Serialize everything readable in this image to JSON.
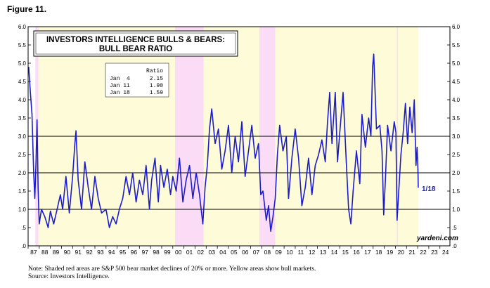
{
  "figure_label": "Figure 11.",
  "note": "Note: Shaded red areas are S&P 500 bear market declines of 20% or more. Yellow areas show bull markets.",
  "source": "Source: Investors Intelligence.",
  "colors": {
    "line": "#1c1ccc",
    "bull": "#fefcd8",
    "bear": "#fbdcf6",
    "gridline": "#000000"
  },
  "chart_data": {
    "type": "line",
    "title": "INVESTORS INTELLIGENCE BULLS & BEARS:",
    "subtitle": "BULL BEAR RATIO",
    "xlabel": "",
    "ylabel": "",
    "xlim": [
      1987.0,
      2024.9
    ],
    "ylim": [
      0,
      6
    ],
    "y_ticks": [
      {
        "v": 0,
        "label": ".0"
      },
      {
        "v": 0.5,
        "label": ".5"
      },
      {
        "v": 1.0,
        "label": "1.0"
      },
      {
        "v": 1.5,
        "label": "1.5"
      },
      {
        "v": 2.0,
        "label": "2.0"
      },
      {
        "v": 2.5,
        "label": "2.5"
      },
      {
        "v": 3.0,
        "label": "3.0"
      },
      {
        "v": 3.5,
        "label": "3.5"
      },
      {
        "v": 4.0,
        "label": "4.0"
      },
      {
        "v": 4.5,
        "label": "4.5"
      },
      {
        "v": 5.0,
        "label": "5.0"
      },
      {
        "v": 5.5,
        "label": "5.5"
      },
      {
        "v": 6.0,
        "label": "6.0"
      }
    ],
    "horizontal_lines": [
      1.0,
      2.0,
      3.0
    ],
    "x_tick_labels": [
      "87",
      "88",
      "89",
      "90",
      "91",
      "92",
      "93",
      "94",
      "95",
      "96",
      "97",
      "98",
      "99",
      "00",
      "01",
      "02",
      "03",
      "04",
      "05",
      "06",
      "07",
      "08",
      "09",
      "10",
      "11",
      "12",
      "13",
      "14",
      "15",
      "16",
      "17",
      "18",
      "19",
      "20",
      "21",
      "22",
      "23",
      "24"
    ],
    "bear_periods": [
      [
        1987.65,
        1987.92
      ],
      [
        2000.2,
        2002.78
      ],
      [
        2007.78,
        2009.2
      ],
      [
        2020.13,
        2020.23
      ]
    ],
    "bull_periods": [
      [
        1987.92,
        2000.2
      ],
      [
        2002.78,
        2007.78
      ],
      [
        2009.2,
        2020.13
      ],
      [
        2020.23,
        2022.05
      ]
    ],
    "table": {
      "header": "Ratio",
      "rows": [
        {
          "date": "Jan  4",
          "value": "2.15"
        },
        {
          "date": "Jan 11",
          "value": "1.90"
        },
        {
          "date": "Jan 18",
          "value": "1.59"
        }
      ]
    },
    "end_label": "1/18",
    "watermark": "yardeni.com",
    "series": [
      {
        "name": "Bull Bear Ratio",
        "points": [
          [
            1987.05,
            4.9
          ],
          [
            1987.2,
            4.2
          ],
          [
            1987.35,
            3.6
          ],
          [
            1987.5,
            2.0
          ],
          [
            1987.6,
            1.3
          ],
          [
            1987.7,
            2.2
          ],
          [
            1987.8,
            3.45
          ],
          [
            1987.9,
            1.6
          ],
          [
            1988.0,
            0.6
          ],
          [
            1988.2,
            1.0
          ],
          [
            1988.5,
            0.8
          ],
          [
            1988.8,
            0.5
          ],
          [
            1989.0,
            0.95
          ],
          [
            1989.3,
            0.6
          ],
          [
            1989.6,
            1.0
          ],
          [
            1989.9,
            1.4
          ],
          [
            1990.1,
            1.0
          ],
          [
            1990.4,
            1.9
          ],
          [
            1990.7,
            0.9
          ],
          [
            1991.0,
            1.9
          ],
          [
            1991.2,
            2.8
          ],
          [
            1991.3,
            3.15
          ],
          [
            1991.5,
            1.8
          ],
          [
            1991.8,
            1.0
          ],
          [
            1992.1,
            2.3
          ],
          [
            1992.4,
            1.6
          ],
          [
            1992.7,
            1.0
          ],
          [
            1993.0,
            1.9
          ],
          [
            1993.3,
            1.3
          ],
          [
            1993.6,
            0.9
          ],
          [
            1994.0,
            1.0
          ],
          [
            1994.3,
            0.5
          ],
          [
            1994.6,
            0.8
          ],
          [
            1994.9,
            0.6
          ],
          [
            1995.2,
            1.0
          ],
          [
            1995.5,
            1.3
          ],
          [
            1995.8,
            1.9
          ],
          [
            1996.1,
            1.4
          ],
          [
            1996.4,
            2.0
          ],
          [
            1996.7,
            1.2
          ],
          [
            1997.0,
            1.8
          ],
          [
            1997.3,
            1.4
          ],
          [
            1997.6,
            2.2
          ],
          [
            1997.9,
            1.0
          ],
          [
            1998.1,
            1.8
          ],
          [
            1998.4,
            2.4
          ],
          [
            1998.7,
            1.2
          ],
          [
            1998.9,
            2.2
          ],
          [
            1999.2,
            1.6
          ],
          [
            1999.5,
            2.1
          ],
          [
            1999.8,
            1.4
          ],
          [
            2000.0,
            1.9
          ],
          [
            2000.3,
            1.5
          ],
          [
            2000.6,
            2.4
          ],
          [
            2000.9,
            1.2
          ],
          [
            2001.2,
            1.8
          ],
          [
            2001.5,
            2.2
          ],
          [
            2001.8,
            1.3
          ],
          [
            2002.1,
            2.0
          ],
          [
            2002.4,
            1.4
          ],
          [
            2002.7,
            0.6
          ],
          [
            2002.9,
            1.6
          ],
          [
            2003.1,
            2.2
          ],
          [
            2003.3,
            3.2
          ],
          [
            2003.5,
            3.75
          ],
          [
            2003.8,
            2.8
          ],
          [
            2004.1,
            3.2
          ],
          [
            2004.4,
            2.1
          ],
          [
            2004.7,
            2.6
          ],
          [
            2005.0,
            3.3
          ],
          [
            2005.3,
            2.0
          ],
          [
            2005.6,
            3.0
          ],
          [
            2005.9,
            2.3
          ],
          [
            2006.2,
            3.4
          ],
          [
            2006.5,
            1.9
          ],
          [
            2006.8,
            2.6
          ],
          [
            2007.1,
            3.3
          ],
          [
            2007.4,
            2.4
          ],
          [
            2007.7,
            2.8
          ],
          [
            2007.9,
            1.4
          ],
          [
            2008.1,
            1.5
          ],
          [
            2008.4,
            0.7
          ],
          [
            2008.6,
            1.1
          ],
          [
            2008.8,
            0.4
          ],
          [
            2009.0,
            0.8
          ],
          [
            2009.2,
            1.3
          ],
          [
            2009.4,
            2.5
          ],
          [
            2009.6,
            3.3
          ],
          [
            2009.9,
            2.6
          ],
          [
            2010.2,
            3.0
          ],
          [
            2010.4,
            1.3
          ],
          [
            2010.7,
            2.4
          ],
          [
            2011.0,
            3.2
          ],
          [
            2011.3,
            2.4
          ],
          [
            2011.6,
            1.1
          ],
          [
            2011.9,
            1.6
          ],
          [
            2012.2,
            2.4
          ],
          [
            2012.5,
            1.4
          ],
          [
            2012.8,
            2.2
          ],
          [
            2013.1,
            2.5
          ],
          [
            2013.4,
            2.9
          ],
          [
            2013.7,
            2.3
          ],
          [
            2013.9,
            3.4
          ],
          [
            2014.1,
            4.2
          ],
          [
            2014.3,
            2.8
          ],
          [
            2014.6,
            4.2
          ],
          [
            2014.8,
            2.3
          ],
          [
            2015.0,
            3.1
          ],
          [
            2015.3,
            4.2
          ],
          [
            2015.6,
            2.2
          ],
          [
            2015.8,
            1.0
          ],
          [
            2016.0,
            0.6
          ],
          [
            2016.2,
            1.5
          ],
          [
            2016.5,
            2.6
          ],
          [
            2016.8,
            1.7
          ],
          [
            2017.0,
            3.6
          ],
          [
            2017.3,
            2.7
          ],
          [
            2017.6,
            3.5
          ],
          [
            2017.8,
            3.0
          ],
          [
            2017.95,
            4.9
          ],
          [
            2018.05,
            5.25
          ],
          [
            2018.3,
            3.2
          ],
          [
            2018.6,
            3.3
          ],
          [
            2018.8,
            2.6
          ],
          [
            2018.95,
            0.85
          ],
          [
            2019.1,
            1.8
          ],
          [
            2019.3,
            3.3
          ],
          [
            2019.6,
            2.6
          ],
          [
            2019.9,
            3.4
          ],
          [
            2020.05,
            3.1
          ],
          [
            2020.15,
            0.7
          ],
          [
            2020.3,
            1.5
          ],
          [
            2020.5,
            2.5
          ],
          [
            2020.7,
            3.1
          ],
          [
            2020.9,
            3.9
          ],
          [
            2021.1,
            2.8
          ],
          [
            2021.3,
            3.8
          ],
          [
            2021.5,
            3.1
          ],
          [
            2021.7,
            4.0
          ],
          [
            2021.85,
            2.2
          ],
          [
            2021.95,
            2.7
          ],
          [
            2022.02,
            2.15
          ],
          [
            2022.04,
            1.9
          ],
          [
            2022.05,
            1.59
          ]
        ]
      }
    ]
  }
}
